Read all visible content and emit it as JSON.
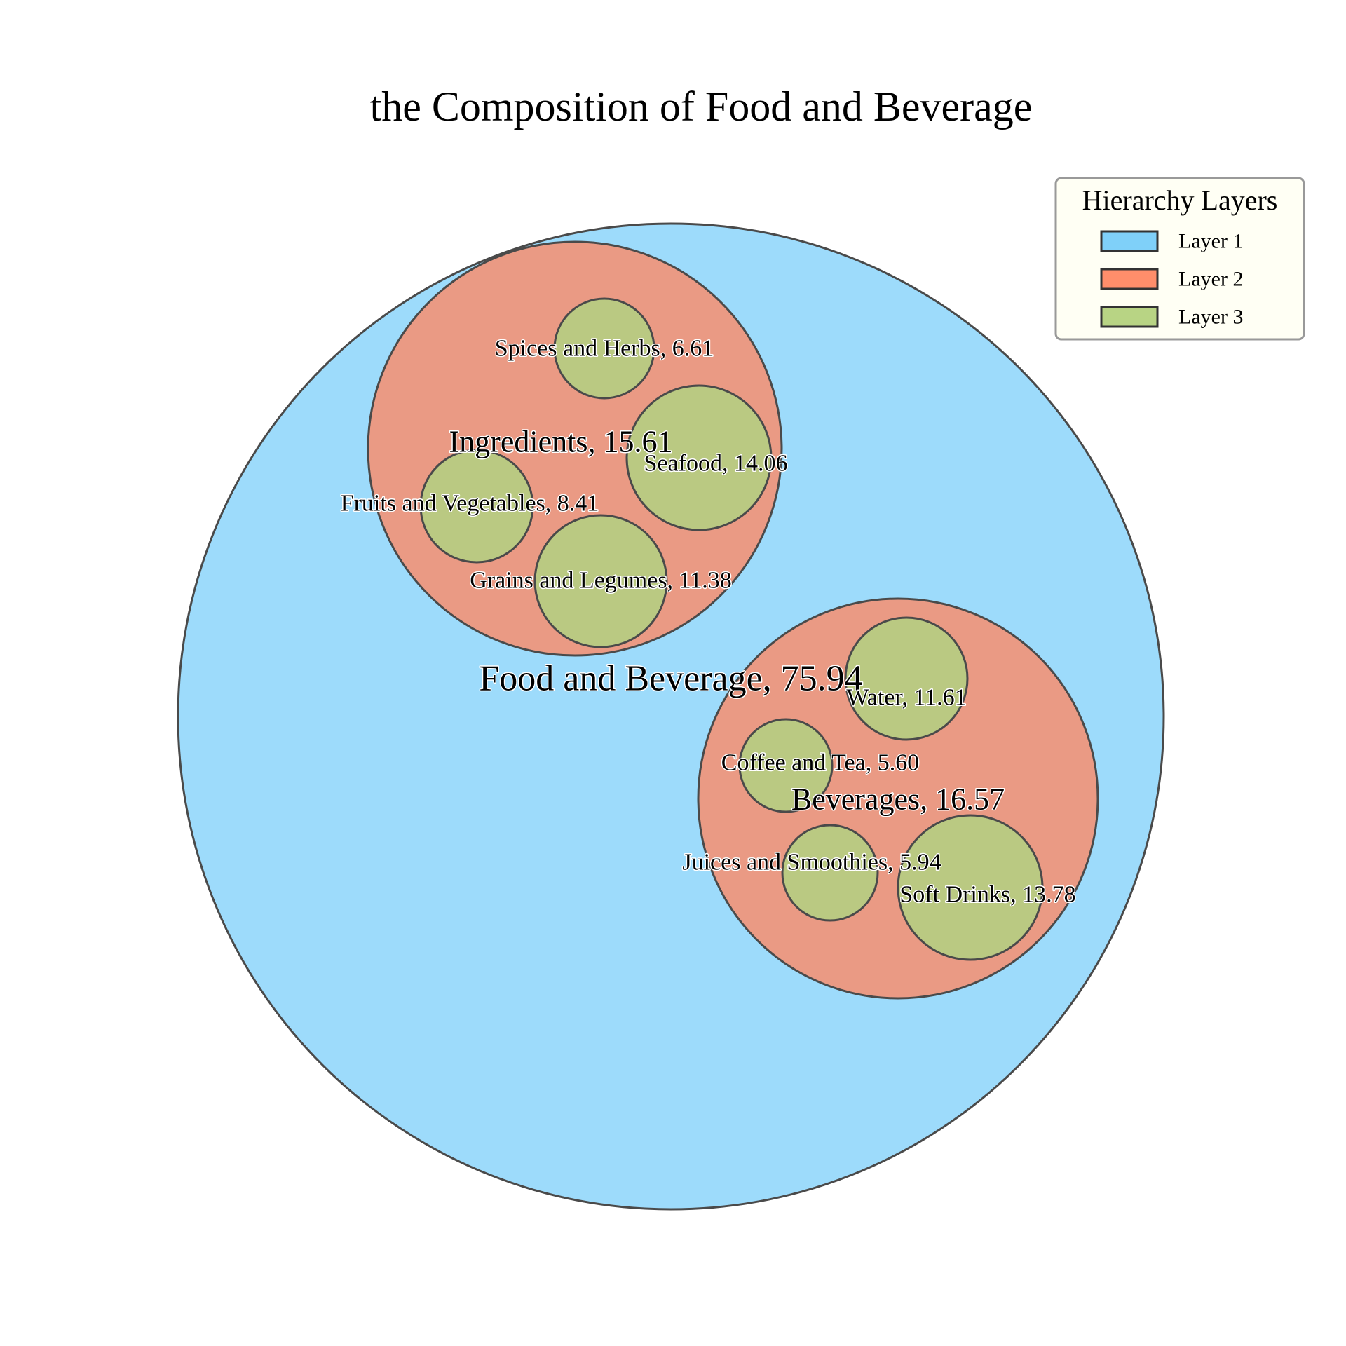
{
  "chart_data": {
    "type": "circle-packing",
    "title": "the Composition of Food and Beverage",
    "legend": {
      "title": "Hierarchy Layers",
      "placement": "top-right",
      "entries": [
        {
          "label": "Layer 1",
          "color": "#7fd0f9"
        },
        {
          "label": "Layer 2",
          "color": "#ff8e6b"
        },
        {
          "label": "Layer 3",
          "color": "#b8d484"
        }
      ]
    },
    "colors": {
      "layer1": "#9ddbfb",
      "layer2": "#ea9a84",
      "layer3": "#bac982",
      "edge": "#4a4a4a"
    },
    "root": {
      "name": "Food and Beverage",
      "value": 75.94,
      "label": "Food and Beverage, 75.94",
      "children": [
        {
          "name": "Ingredients",
          "value": 15.61,
          "label": "Ingredients, 15.61",
          "children": [
            {
              "name": "Spices and Herbs",
              "value": 6.61,
              "label": "Spices and Herbs, 6.61"
            },
            {
              "name": "Seafood",
              "value": 14.06,
              "label": "Seafood, 14.06"
            },
            {
              "name": "Fruits and Vegetables",
              "value": 8.41,
              "label": "Fruits and Vegetables, 8.41"
            },
            {
              "name": "Grains and Legumes",
              "value": 11.38,
              "label": "Grains and Legumes, 11.38"
            }
          ]
        },
        {
          "name": "Beverages",
          "value": 16.57,
          "label": "Beverages, 16.57",
          "children": [
            {
              "name": "Water",
              "value": 11.61,
              "label": "Water, 11.61"
            },
            {
              "name": "Coffee and Tea",
              "value": 5.6,
              "label": "Coffee and Tea, 5.60"
            },
            {
              "name": "Juices and Smoothies",
              "value": 5.94,
              "label": "Juices and Smoothies, 5.94"
            },
            {
              "name": "Soft Drinks",
              "value": 13.78,
              "label": "Soft Drinks, 13.78"
            }
          ]
        }
      ]
    }
  }
}
